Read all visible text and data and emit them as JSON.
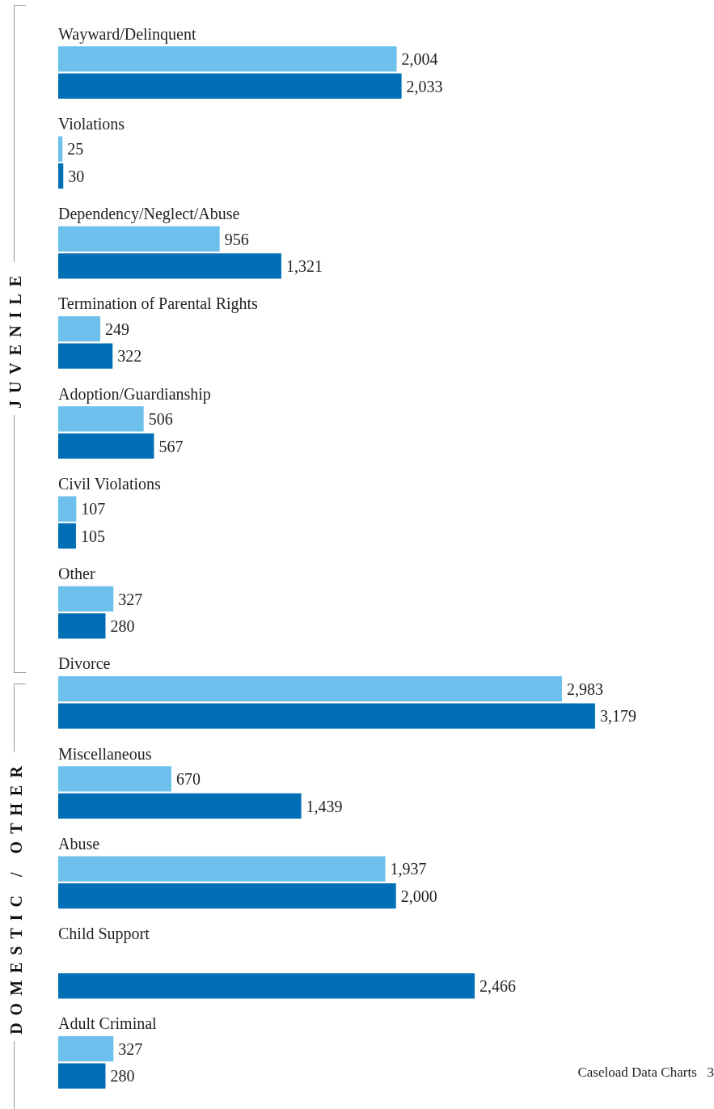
{
  "chart_data": {
    "type": "bar",
    "orientation": "horizontal",
    "categories": [
      "Wayward/Delinquent",
      "Violations",
      "Dependency/Neglect/Abuse",
      "Termination of Parental Rights",
      "Adoption/Guardianship",
      "Civil Violations",
      "Other",
      "Divorce",
      "Miscellaneous",
      "Abuse",
      "Child Support",
      "Adult Criminal"
    ],
    "series": [
      {
        "color": "#6cc0eb",
        "values": [
          2004,
          25,
          956,
          249,
          506,
          107,
          327,
          2983,
          670,
          1937,
          null,
          327
        ],
        "value_labels": [
          "2,004",
          "25",
          "956",
          "249",
          "506",
          "107",
          "327",
          "2,983",
          "670",
          "1,937",
          null,
          "327"
        ]
      },
      {
        "color": "#006fb5",
        "values": [
          2033,
          30,
          1321,
          322,
          567,
          105,
          280,
          3179,
          1439,
          2000,
          2466,
          280
        ],
        "value_labels": [
          "2,033",
          "30",
          "1,321",
          "322",
          "567",
          "105",
          "280",
          "3,179",
          "1,439",
          "2,000",
          "2,466",
          "280"
        ]
      }
    ],
    "legend": false,
    "annotations": [
      "JUVENILE",
      "DOMESTIC / OTHER",
      "Caseload Data Charts   3"
    ]
  }
}
